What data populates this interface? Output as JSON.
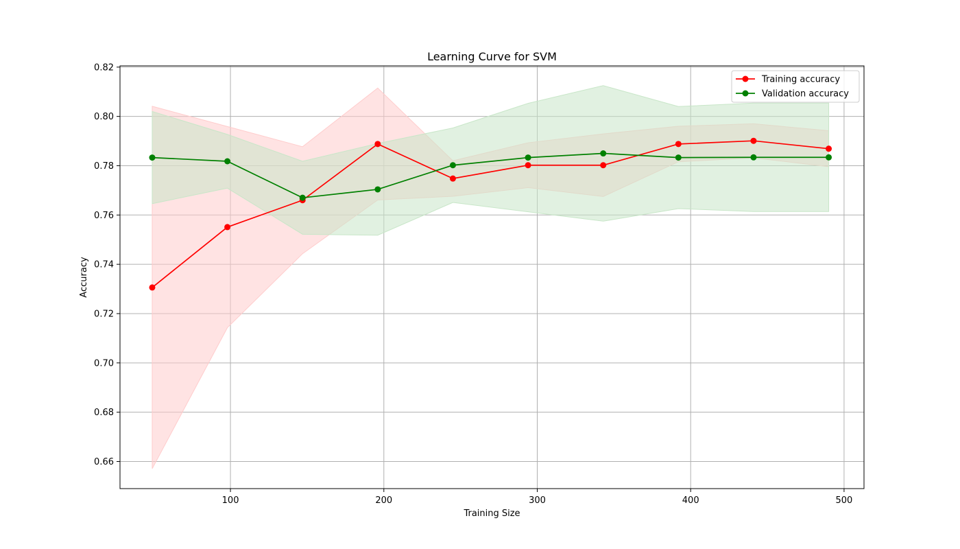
{
  "chart_data": {
    "type": "line",
    "title": "Learning Curve for SVM",
    "xlabel": "Training Size",
    "ylabel": "Accuracy",
    "xlim": [
      28,
      513
    ],
    "ylim": [
      0.649,
      0.8205
    ],
    "xticks": [
      100,
      200,
      300,
      400,
      500
    ],
    "yticks": [
      0.66,
      0.68,
      0.7,
      0.72,
      0.74,
      0.76,
      0.78,
      0.8,
      0.82
    ],
    "xtick_labels": [
      "100",
      "200",
      "300",
      "400",
      "500"
    ],
    "ytick_labels": [
      "0.66",
      "0.68",
      "0.70",
      "0.72",
      "0.74",
      "0.76",
      "0.78",
      "0.80",
      "0.82"
    ],
    "grid": true,
    "legend_position": "top-right",
    "x": [
      49,
      98,
      147,
      196,
      245,
      294,
      343,
      392,
      441,
      490
    ],
    "series": [
      {
        "name": "Training accuracy",
        "color": "#ff0000",
        "band_color": "#ffcccc",
        "values": [
          0.7306,
          0.7551,
          0.766,
          0.7888,
          0.7748,
          0.7802,
          0.7802,
          0.7888,
          0.7901,
          0.7869
        ],
        "upper": [
          0.8041,
          0.7959,
          0.7877,
          0.8115,
          0.782,
          0.7893,
          0.7929,
          0.796,
          0.797,
          0.7942
        ],
        "lower": [
          0.6571,
          0.7143,
          0.7443,
          0.7661,
          0.7676,
          0.7711,
          0.7675,
          0.7816,
          0.7832,
          0.7796
        ]
      },
      {
        "name": "Validation accuracy",
        "color": "#008000",
        "band_color": "#c8e6c8",
        "values": [
          0.7833,
          0.7818,
          0.767,
          0.7704,
          0.7802,
          0.7833,
          0.785,
          0.7833,
          0.7834,
          0.7834
        ],
        "upper": [
          0.802,
          0.7927,
          0.7818,
          0.789,
          0.7953,
          0.8053,
          0.8125,
          0.804,
          0.8054,
          0.8054
        ],
        "lower": [
          0.7646,
          0.7709,
          0.7522,
          0.7518,
          0.7651,
          0.7613,
          0.7575,
          0.7626,
          0.7614,
          0.7614
        ]
      }
    ]
  }
}
